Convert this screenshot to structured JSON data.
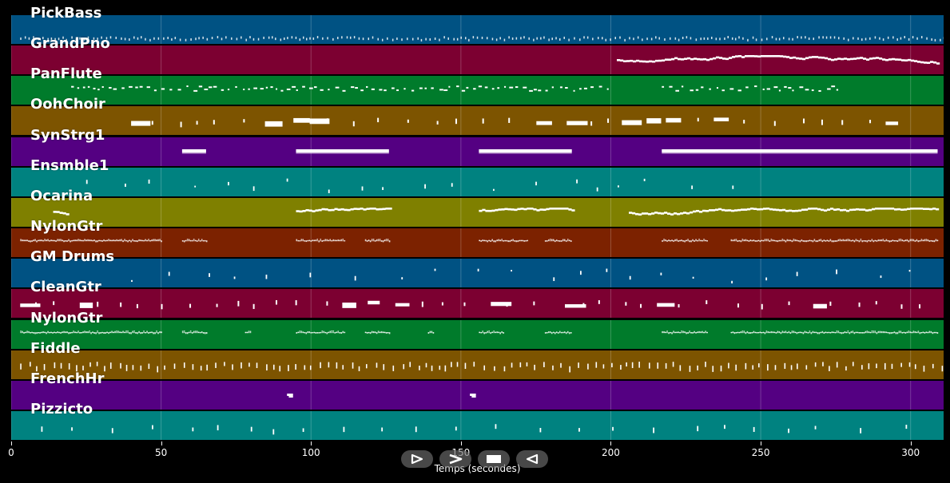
{
  "chart_data": {
    "type": "area",
    "xlabel": "Temps (secondes)",
    "xlim": [
      0,
      311
    ],
    "xticks": [
      0,
      50,
      100,
      150,
      200,
      250,
      300
    ],
    "tracks": [
      {
        "name": "PickBass",
        "color": "#005283",
        "activity": [
          [
            3,
            311
          ]
        ],
        "style": "dense-ticks"
      },
      {
        "name": "GrandPno",
        "color": "#7c0031",
        "activity": [
          [
            202,
            309
          ]
        ],
        "style": "melody"
      },
      {
        "name": "PanFlute",
        "color": "#007b2b",
        "activity": [
          [
            20,
            200
          ],
          [
            217,
            276
          ]
        ],
        "style": "scatter"
      },
      {
        "name": "OohChoir",
        "color": "#7d5400",
        "activity": [
          [
            40,
            295
          ]
        ],
        "style": "sparse-chords"
      },
      {
        "name": "SynStrg1",
        "color": "#540082",
        "activity": [
          [
            57,
            65
          ],
          [
            95,
            126
          ],
          [
            156,
            187
          ],
          [
            217,
            309
          ]
        ],
        "style": "sustained"
      },
      {
        "name": "Ensmble1",
        "color": "#008280",
        "activity": [
          [
            25,
            250
          ]
        ],
        "style": "sparse"
      },
      {
        "name": "Ocarina",
        "color": "#7f8000",
        "activity": [
          [
            14,
            19
          ],
          [
            95,
            126
          ],
          [
            156,
            187
          ],
          [
            206,
            309
          ]
        ],
        "style": "melody"
      },
      {
        "name": "NylonGtr",
        "color": "#7c2200",
        "activity": [
          [
            3,
            50
          ],
          [
            57,
            65
          ],
          [
            95,
            111
          ],
          [
            118,
            126
          ],
          [
            156,
            172
          ],
          [
            178,
            187
          ],
          [
            217,
            232
          ],
          [
            240,
            309
          ]
        ],
        "style": "strum"
      },
      {
        "name": "GM Drums",
        "color": "#005283",
        "activity": [
          [
            40,
            300
          ]
        ],
        "style": "sparse"
      },
      {
        "name": "CleanGtr",
        "color": "#7c0031",
        "activity": [
          [
            3,
            311
          ]
        ],
        "style": "sparse-chords"
      },
      {
        "name": "NylonGtr",
        "color": "#007b2b",
        "activity": [
          [
            3,
            50
          ],
          [
            57,
            65
          ],
          [
            78,
            80
          ],
          [
            95,
            111
          ],
          [
            118,
            126
          ],
          [
            139,
            141
          ],
          [
            156,
            164
          ],
          [
            178,
            187
          ],
          [
            217,
            232
          ],
          [
            240,
            309
          ]
        ],
        "style": "strum"
      },
      {
        "name": "Fiddle",
        "color": "#7d5400",
        "activity": [
          [
            3,
            311
          ]
        ],
        "style": "dense-ticks-low"
      },
      {
        "name": "FrenchHr",
        "color": "#540082",
        "activity": [
          [
            92,
            94
          ],
          [
            153,
            155
          ]
        ],
        "style": "short"
      },
      {
        "name": "Pizzicto",
        "color": "#008280",
        "activity": [
          [
            10,
            300
          ]
        ],
        "style": "sparse-low"
      }
    ]
  },
  "controls": [
    {
      "name": "play-forward-icon"
    },
    {
      "name": "fast-forward-icon"
    },
    {
      "name": "stop-icon"
    },
    {
      "name": "rewind-icon"
    }
  ]
}
